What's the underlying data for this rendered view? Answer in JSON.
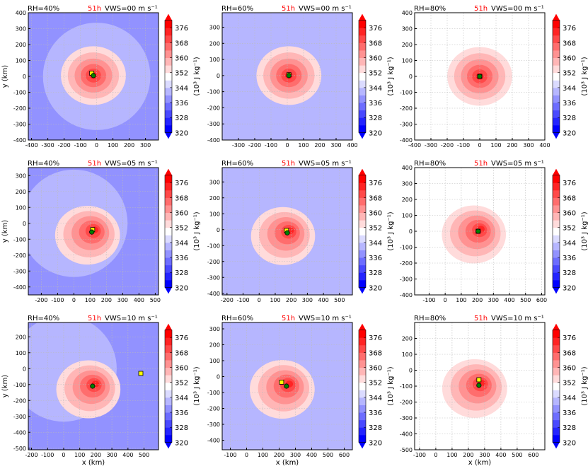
{
  "figure": {
    "time_label": "51h",
    "colorbar": {
      "ticks": [
        "320",
        "328",
        "336",
        "344",
        "352",
        "360",
        "368",
        "376"
      ],
      "label": "(10³ J kg⁻¹)",
      "vmin": 316,
      "vmax": 384,
      "colors": {
        "low": "#0000ff",
        "mid": "#ffffff",
        "high": "#ff0000"
      }
    },
    "colors": {
      "time_label": "#ff0000",
      "marker_yellow": "#ffff00",
      "marker_green": "#008000"
    }
  },
  "chart_data": [
    {
      "type": "heatmap",
      "row": 0,
      "col": 0,
      "title_left": "RH=40%",
      "title_right": "VWS=00 m s⁻¹",
      "xlim": [
        -420,
        380
      ],
      "ylim": [
        -400,
        400
      ],
      "xticks": [
        -400,
        -300,
        -200,
        -100,
        0,
        100,
        200,
        300
      ],
      "yticks": [
        -400,
        -300,
        -200,
        -100,
        0,
        100,
        200,
        300,
        400
      ],
      "xlabel": "",
      "ylabel": "y (km)",
      "env": 336,
      "centers": {
        "yellow": [
          -30,
          20
        ],
        "green": [
          -20,
          5
        ]
      }
    },
    {
      "type": "heatmap",
      "row": 0,
      "col": 1,
      "title_left": "RH=60%",
      "title_right": "VWS=00 m s⁻¹",
      "xlim": [
        -400,
        400
      ],
      "ylim": [
        -400,
        390
      ],
      "xticks": [
        -300,
        -200,
        -100,
        0,
        100,
        200,
        300,
        400
      ],
      "yticks": [
        -400,
        -300,
        -200,
        -100,
        0,
        100,
        200,
        300
      ],
      "xlabel": "",
      "ylabel": "",
      "env": 342,
      "centers": {
        "yellow": [
          10,
          5
        ],
        "green": [
          10,
          0
        ]
      }
    },
    {
      "type": "heatmap",
      "row": 0,
      "col": 2,
      "title_left": "RH=80%",
      "title_right": "VWS=00 m s⁻¹",
      "xlim": [
        -400,
        400
      ],
      "ylim": [
        -400,
        400
      ],
      "xticks": [
        -400,
        -300,
        -200,
        -100,
        0,
        100,
        200,
        300,
        400
      ],
      "yticks": [
        -400,
        -300,
        -200,
        -100,
        0,
        100,
        200,
        300,
        400
      ],
      "xlabel": "",
      "ylabel": "",
      "env": 351,
      "centers": {
        "yellow": [
          0,
          0
        ],
        "green": [
          0,
          0
        ]
      }
    },
    {
      "type": "heatmap",
      "row": 1,
      "col": 0,
      "title_left": "RH=40%",
      "title_right": "VWS=05 m s⁻¹",
      "xlim": [
        -280,
        520
      ],
      "ylim": [
        -450,
        350
      ],
      "xticks": [
        -200,
        -100,
        0,
        100,
        200,
        300,
        400,
        500
      ],
      "yticks": [
        -400,
        -300,
        -200,
        -100,
        0,
        100,
        200,
        300
      ],
      "xlabel": "",
      "ylabel": "y (km)",
      "env": 336,
      "centers": {
        "yellow": [
          115,
          -40
        ],
        "green": [
          110,
          -55
        ]
      }
    },
    {
      "type": "heatmap",
      "row": 1,
      "col": 1,
      "title_left": "RH=60%",
      "title_right": "VWS=05 m s⁻¹",
      "xlim": [
        -230,
        580
      ],
      "ylim": [
        -410,
        390
      ],
      "xticks": [
        -200,
        -100,
        0,
        100,
        200,
        300,
        400,
        500
      ],
      "yticks": [
        -400,
        -300,
        -200,
        -100,
        0,
        100,
        200,
        300
      ],
      "xlabel": "",
      "ylabel": "",
      "env": 342,
      "centers": {
        "yellow": [
          170,
          -5
        ],
        "green": [
          175,
          -20
        ]
      }
    },
    {
      "type": "heatmap",
      "row": 1,
      "col": 2,
      "title_left": "RH=80%",
      "title_right": "VWS=05 m s⁻¹",
      "xlim": [
        -190,
        620
      ],
      "ylim": [
        -400,
        400
      ],
      "xticks": [
        -100,
        0,
        100,
        200,
        300,
        400,
        500,
        600
      ],
      "yticks": [
        -400,
        -300,
        -200,
        -100,
        0,
        100,
        200,
        300,
        400
      ],
      "xlabel": "",
      "ylabel": "",
      "env": 351,
      "centers": {
        "yellow": [
          205,
          0
        ],
        "green": [
          205,
          0
        ]
      }
    },
    {
      "type": "heatmap",
      "row": 2,
      "col": 0,
      "title_left": "RH=40%",
      "title_right": "VWS=10 m s⁻¹",
      "xlim": [
        -220,
        590
      ],
      "ylim": [
        -510,
        290
      ],
      "xticks": [
        -200,
        -100,
        0,
        100,
        200,
        300,
        400,
        500
      ],
      "yticks": [
        -500,
        -400,
        -300,
        -200,
        -100,
        0,
        100,
        200
      ],
      "xlabel": "x (km)",
      "ylabel": "y (km)",
      "env": 336,
      "centers": {
        "yellow": [
          480,
          -30
        ],
        "green": [
          180,
          -110
        ]
      }
    },
    {
      "type": "heatmap",
      "row": 2,
      "col": 1,
      "title_left": "RH=60%",
      "title_right": "VWS=10 m s⁻¹",
      "xlim": [
        -150,
        650
      ],
      "ylim": [
        -460,
        340
      ],
      "xticks": [
        -100,
        0,
        100,
        200,
        300,
        400,
        500,
        600
      ],
      "yticks": [
        -400,
        -300,
        -200,
        -100,
        0,
        100,
        200,
        300
      ],
      "xlabel": "x (km)",
      "ylabel": "",
      "env": 342,
      "centers": {
        "yellow": [
          215,
          -35
        ],
        "green": [
          245,
          -60
        ]
      }
    },
    {
      "type": "heatmap",
      "row": 2,
      "col": 2,
      "title_left": "RH=80%",
      "title_right": "VWS=10 m s⁻¹",
      "xlim": [
        -130,
        670
      ],
      "ylim": [
        -500,
        300
      ],
      "xticks": [
        -100,
        0,
        100,
        200,
        300,
        400,
        500,
        600
      ],
      "yticks": [
        -500,
        -400,
        -300,
        -200,
        -100,
        0,
        100,
        200
      ],
      "xlabel": "x (km)",
      "ylabel": "",
      "env": 351,
      "centers": {
        "yellow": [
          265,
          -60
        ],
        "green": [
          265,
          -95
        ]
      }
    }
  ]
}
